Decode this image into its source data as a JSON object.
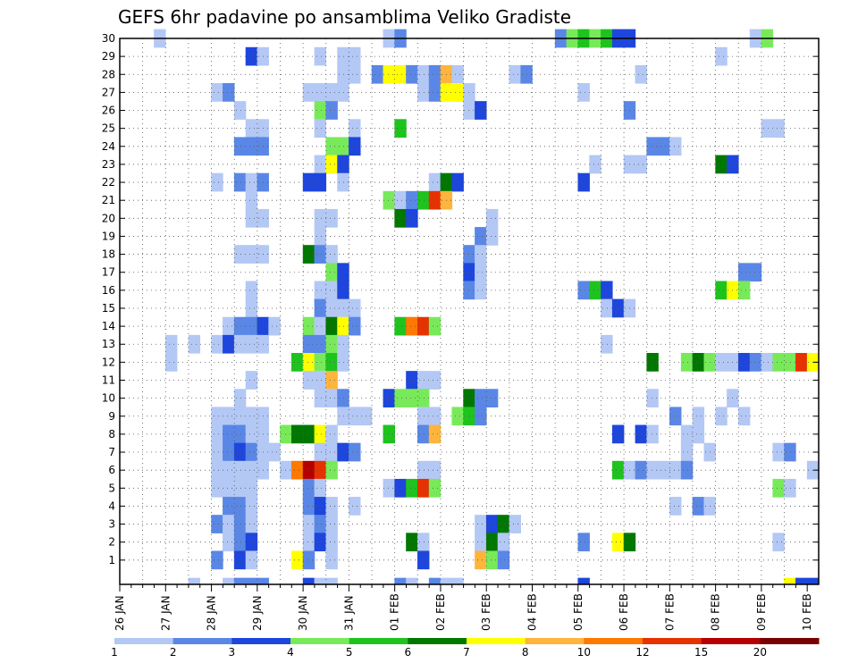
{
  "chart_data": {
    "type": "heatmap",
    "title": "GEFS 6hr padavine po ansamblima Veliko Gradiste",
    "xlabel": "",
    "ylabel": "",
    "grid": true,
    "x_tick_labels": [
      "26 JAN",
      "27 JAN",
      "28 JAN",
      "29 JAN",
      "30 JAN",
      "31 JAN",
      "01 FEB",
      "02 FEB",
      "03 FEB",
      "04 FEB",
      "05 FEB",
      "06 FEB",
      "07 FEB",
      "08 FEB",
      "09 FEB",
      "10 FEB"
    ],
    "y_tick_labels": [
      "1",
      "2",
      "3",
      "4",
      "5",
      "6",
      "7",
      "8",
      "9",
      "10",
      "11",
      "12",
      "13",
      "14",
      "15",
      "16",
      "17",
      "18",
      "19",
      "20",
      "21",
      "22",
      "23",
      "24",
      "25",
      "26",
      "27",
      "28",
      "29",
      "30"
    ],
    "x_range_steps": [
      0,
      60
    ],
    "steps_per_day": 4,
    "members_range": [
      0,
      30
    ],
    "colorbar": {
      "labels": [
        "1",
        "2",
        "3",
        "4",
        "5",
        "6",
        "7",
        "8",
        "10",
        "12",
        "15",
        "20"
      ],
      "colors": [
        "#b4c8f5",
        "#5a87e6",
        "#1e46dc",
        "#78ea5a",
        "#1ec31e",
        "#007800",
        "#ffff00",
        "#ffb43c",
        "#ff7800",
        "#e63200",
        "#b40000",
        "#780000"
      ]
    },
    "cells": [
      [
        3,
        30,
        1
      ],
      [
        23,
        30,
        1
      ],
      [
        24,
        30,
        2
      ],
      [
        38,
        30,
        2
      ],
      [
        39,
        30,
        4
      ],
      [
        40,
        30,
        5
      ],
      [
        41,
        30,
        4
      ],
      [
        42,
        30,
        5
      ],
      [
        43,
        30,
        3
      ],
      [
        44,
        30,
        3
      ],
      [
        55,
        30,
        1
      ],
      [
        56,
        30,
        4
      ],
      [
        11,
        29,
        3
      ],
      [
        12,
        29,
        1
      ],
      [
        17,
        29,
        1
      ],
      [
        19,
        29,
        1
      ],
      [
        20,
        29,
        1
      ],
      [
        52,
        29,
        1
      ],
      [
        19,
        28,
        1
      ],
      [
        20,
        28,
        1
      ],
      [
        22,
        28,
        2
      ],
      [
        23,
        28,
        7
      ],
      [
        24,
        28,
        7
      ],
      [
        25,
        28,
        2
      ],
      [
        26,
        28,
        1
      ],
      [
        27,
        28,
        2
      ],
      [
        28,
        28,
        8
      ],
      [
        29,
        28,
        1
      ],
      [
        34,
        28,
        1
      ],
      [
        35,
        28,
        2
      ],
      [
        45,
        28,
        1
      ],
      [
        8,
        27,
        1
      ],
      [
        9,
        27,
        2
      ],
      [
        16,
        27,
        1
      ],
      [
        17,
        27,
        1
      ],
      [
        18,
        27,
        1
      ],
      [
        19,
        27,
        1
      ],
      [
        26,
        27,
        1
      ],
      [
        27,
        27,
        2
      ],
      [
        28,
        27,
        7
      ],
      [
        29,
        27,
        7
      ],
      [
        30,
        27,
        1
      ],
      [
        40,
        27,
        1
      ],
      [
        10,
        26,
        1
      ],
      [
        17,
        26,
        4
      ],
      [
        18,
        26,
        2
      ],
      [
        30,
        26,
        1
      ],
      [
        31,
        26,
        3
      ],
      [
        44,
        26,
        2
      ],
      [
        11,
        25,
        1
      ],
      [
        12,
        25,
        1
      ],
      [
        17,
        25,
        1
      ],
      [
        20,
        25,
        1
      ],
      [
        24,
        25,
        5
      ],
      [
        56,
        25,
        1
      ],
      [
        57,
        25,
        1
      ],
      [
        10,
        24,
        2
      ],
      [
        11,
        24,
        2
      ],
      [
        12,
        24,
        2
      ],
      [
        18,
        24,
        4
      ],
      [
        19,
        24,
        4
      ],
      [
        20,
        24,
        3
      ],
      [
        46,
        24,
        2
      ],
      [
        47,
        24,
        2
      ],
      [
        48,
        24,
        1
      ],
      [
        17,
        23,
        1
      ],
      [
        18,
        23,
        7
      ],
      [
        19,
        23,
        3
      ],
      [
        41,
        23,
        1
      ],
      [
        44,
        23,
        1
      ],
      [
        45,
        23,
        1
      ],
      [
        52,
        23,
        6
      ],
      [
        53,
        23,
        3
      ],
      [
        8,
        22,
        1
      ],
      [
        10,
        22,
        2
      ],
      [
        11,
        22,
        1
      ],
      [
        12,
        22,
        2
      ],
      [
        16,
        22,
        3
      ],
      [
        17,
        22,
        3
      ],
      [
        19,
        22,
        1
      ],
      [
        27,
        22,
        1
      ],
      [
        28,
        22,
        6
      ],
      [
        29,
        22,
        3
      ],
      [
        40,
        22,
        3
      ],
      [
        11,
        21,
        1
      ],
      [
        23,
        21,
        4
      ],
      [
        24,
        21,
        1
      ],
      [
        25,
        21,
        2
      ],
      [
        26,
        21,
        5
      ],
      [
        27,
        21,
        10
      ],
      [
        28,
        21,
        8
      ],
      [
        11,
        20,
        1
      ],
      [
        12,
        20,
        1
      ],
      [
        17,
        20,
        1
      ],
      [
        18,
        20,
        1
      ],
      [
        24,
        20,
        6
      ],
      [
        25,
        20,
        3
      ],
      [
        32,
        20,
        1
      ],
      [
        17,
        19,
        1
      ],
      [
        31,
        19,
        2
      ],
      [
        32,
        19,
        1
      ],
      [
        10,
        18,
        1
      ],
      [
        11,
        18,
        1
      ],
      [
        12,
        18,
        1
      ],
      [
        16,
        18,
        6
      ],
      [
        17,
        18,
        2
      ],
      [
        18,
        18,
        1
      ],
      [
        30,
        18,
        2
      ],
      [
        31,
        18,
        1
      ],
      [
        18,
        17,
        4
      ],
      [
        19,
        17,
        3
      ],
      [
        30,
        17,
        3
      ],
      [
        31,
        17,
        1
      ],
      [
        54,
        17,
        2
      ],
      [
        55,
        17,
        2
      ],
      [
        11,
        16,
        1
      ],
      [
        17,
        16,
        1
      ],
      [
        18,
        16,
        1
      ],
      [
        19,
        16,
        3
      ],
      [
        30,
        16,
        2
      ],
      [
        31,
        16,
        1
      ],
      [
        40,
        16,
        2
      ],
      [
        41,
        16,
        5
      ],
      [
        42,
        16,
        3
      ],
      [
        52,
        16,
        5
      ],
      [
        53,
        16,
        7
      ],
      [
        54,
        16,
        4
      ],
      [
        11,
        15,
        1
      ],
      [
        17,
        15,
        2
      ],
      [
        18,
        15,
        1
      ],
      [
        19,
        15,
        1
      ],
      [
        20,
        15,
        1
      ],
      [
        42,
        15,
        1
      ],
      [
        43,
        15,
        3
      ],
      [
        44,
        15,
        1
      ],
      [
        9,
        14,
        1
      ],
      [
        10,
        14,
        2
      ],
      [
        11,
        14,
        2
      ],
      [
        12,
        14,
        3
      ],
      [
        13,
        14,
        1
      ],
      [
        16,
        14,
        4
      ],
      [
        17,
        14,
        1
      ],
      [
        18,
        14,
        6
      ],
      [
        19,
        14,
        7
      ],
      [
        20,
        14,
        2
      ],
      [
        24,
        14,
        5
      ],
      [
        25,
        14,
        9
      ],
      [
        26,
        14,
        10
      ],
      [
        27,
        14,
        4
      ],
      [
        4,
        13,
        1
      ],
      [
        6,
        13,
        1
      ],
      [
        8,
        13,
        1
      ],
      [
        9,
        13,
        3
      ],
      [
        10,
        13,
        1
      ],
      [
        11,
        13,
        1
      ],
      [
        12,
        13,
        1
      ],
      [
        16,
        13,
        2
      ],
      [
        17,
        13,
        2
      ],
      [
        18,
        13,
        4
      ],
      [
        19,
        13,
        1
      ],
      [
        42,
        13,
        1
      ],
      [
        4,
        12,
        1
      ],
      [
        15,
        12,
        5
      ],
      [
        16,
        12,
        7
      ],
      [
        17,
        12,
        4
      ],
      [
        18,
        12,
        5
      ],
      [
        19,
        12,
        1
      ],
      [
        46,
        12,
        6
      ],
      [
        49,
        12,
        4
      ],
      [
        50,
        12,
        6
      ],
      [
        51,
        12,
        4
      ],
      [
        52,
        12,
        1
      ],
      [
        53,
        12,
        1
      ],
      [
        54,
        12,
        3
      ],
      [
        55,
        12,
        2
      ],
      [
        56,
        12,
        1
      ],
      [
        57,
        12,
        4
      ],
      [
        58,
        12,
        4
      ],
      [
        59,
        12,
        10
      ],
      [
        60,
        12,
        7
      ],
      [
        11,
        11,
        1
      ],
      [
        16,
        11,
        1
      ],
      [
        17,
        11,
        1
      ],
      [
        18,
        11,
        8
      ],
      [
        25,
        11,
        3
      ],
      [
        26,
        11,
        1
      ],
      [
        27,
        11,
        1
      ],
      [
        10,
        10,
        1
      ],
      [
        17,
        10,
        1
      ],
      [
        18,
        10,
        1
      ],
      [
        19,
        10,
        2
      ],
      [
        23,
        10,
        3
      ],
      [
        24,
        10,
        4
      ],
      [
        25,
        10,
        4
      ],
      [
        26,
        10,
        4
      ],
      [
        30,
        10,
        6
      ],
      [
        31,
        10,
        2
      ],
      [
        32,
        10,
        2
      ],
      [
        46,
        10,
        1
      ],
      [
        53,
        10,
        1
      ],
      [
        8,
        9,
        1
      ],
      [
        9,
        9,
        1
      ],
      [
        10,
        9,
        1
      ],
      [
        11,
        9,
        1
      ],
      [
        12,
        9,
        1
      ],
      [
        19,
        9,
        1
      ],
      [
        20,
        9,
        1
      ],
      [
        21,
        9,
        1
      ],
      [
        26,
        9,
        1
      ],
      [
        27,
        9,
        1
      ],
      [
        29,
        9,
        4
      ],
      [
        30,
        9,
        5
      ],
      [
        31,
        9,
        2
      ],
      [
        48,
        9,
        2
      ],
      [
        50,
        9,
        1
      ],
      [
        52,
        9,
        1
      ],
      [
        54,
        9,
        1
      ],
      [
        8,
        8,
        1
      ],
      [
        9,
        8,
        2
      ],
      [
        10,
        8,
        2
      ],
      [
        11,
        8,
        1
      ],
      [
        12,
        8,
        1
      ],
      [
        14,
        8,
        4
      ],
      [
        15,
        8,
        6
      ],
      [
        16,
        8,
        6
      ],
      [
        17,
        8,
        7
      ],
      [
        18,
        8,
        1
      ],
      [
        23,
        8,
        5
      ],
      [
        26,
        8,
        2
      ],
      [
        27,
        8,
        8
      ],
      [
        43,
        8,
        3
      ],
      [
        45,
        8,
        3
      ],
      [
        46,
        8,
        1
      ],
      [
        49,
        8,
        1
      ],
      [
        50,
        8,
        1
      ],
      [
        8,
        7,
        1
      ],
      [
        9,
        7,
        2
      ],
      [
        10,
        7,
        3
      ],
      [
        11,
        7,
        2
      ],
      [
        12,
        7,
        1
      ],
      [
        13,
        7,
        1
      ],
      [
        17,
        7,
        1
      ],
      [
        18,
        7,
        1
      ],
      [
        19,
        7,
        3
      ],
      [
        20,
        7,
        2
      ],
      [
        49,
        7,
        1
      ],
      [
        51,
        7,
        1
      ],
      [
        57,
        7,
        1
      ],
      [
        58,
        7,
        2
      ],
      [
        8,
        6,
        1
      ],
      [
        9,
        6,
        1
      ],
      [
        10,
        6,
        1
      ],
      [
        11,
        6,
        1
      ],
      [
        12,
        6,
        1
      ],
      [
        14,
        6,
        1
      ],
      [
        15,
        6,
        9
      ],
      [
        16,
        6,
        11
      ],
      [
        17,
        6,
        10
      ],
      [
        18,
        6,
        4
      ],
      [
        26,
        6,
        1
      ],
      [
        27,
        6,
        1
      ],
      [
        43,
        6,
        5
      ],
      [
        44,
        6,
        1
      ],
      [
        45,
        6,
        2
      ],
      [
        46,
        6,
        1
      ],
      [
        47,
        6,
        1
      ],
      [
        48,
        6,
        1
      ],
      [
        49,
        6,
        2
      ],
      [
        60,
        6,
        1
      ],
      [
        8,
        5,
        1
      ],
      [
        9,
        5,
        1
      ],
      [
        10,
        5,
        1
      ],
      [
        11,
        5,
        1
      ],
      [
        16,
        5,
        2
      ],
      [
        17,
        5,
        1
      ],
      [
        23,
        5,
        1
      ],
      [
        24,
        5,
        3
      ],
      [
        25,
        5,
        5
      ],
      [
        26,
        5,
        10
      ],
      [
        27,
        5,
        4
      ],
      [
        57,
        5,
        4
      ],
      [
        58,
        5,
        1
      ],
      [
        9,
        4,
        2
      ],
      [
        10,
        4,
        2
      ],
      [
        11,
        4,
        1
      ],
      [
        16,
        4,
        2
      ],
      [
        17,
        4,
        3
      ],
      [
        18,
        4,
        1
      ],
      [
        20,
        4,
        1
      ],
      [
        48,
        4,
        1
      ],
      [
        50,
        4,
        2
      ],
      [
        51,
        4,
        1
      ],
      [
        8,
        3,
        2
      ],
      [
        9,
        3,
        1
      ],
      [
        10,
        3,
        2
      ],
      [
        11,
        3,
        1
      ],
      [
        16,
        3,
        1
      ],
      [
        17,
        3,
        2
      ],
      [
        18,
        3,
        1
      ],
      [
        31,
        3,
        1
      ],
      [
        32,
        3,
        3
      ],
      [
        33,
        3,
        6
      ],
      [
        34,
        3,
        1
      ],
      [
        9,
        2,
        1
      ],
      [
        10,
        2,
        2
      ],
      [
        11,
        2,
        3
      ],
      [
        16,
        2,
        1
      ],
      [
        17,
        2,
        3
      ],
      [
        18,
        2,
        1
      ],
      [
        25,
        2,
        6
      ],
      [
        26,
        2,
        1
      ],
      [
        31,
        2,
        1
      ],
      [
        32,
        2,
        6
      ],
      [
        33,
        2,
        1
      ],
      [
        40,
        2,
        2
      ],
      [
        43,
        2,
        7
      ],
      [
        44,
        2,
        6
      ],
      [
        57,
        2,
        1
      ],
      [
        8,
        1,
        2
      ],
      [
        10,
        1,
        3
      ],
      [
        11,
        1,
        1
      ],
      [
        15,
        1,
        7
      ],
      [
        16,
        1,
        2
      ],
      [
        18,
        1,
        1
      ],
      [
        26,
        1,
        3
      ],
      [
        31,
        1,
        8
      ],
      [
        32,
        1,
        4
      ],
      [
        33,
        1,
        2
      ],
      [
        6,
        0,
        1
      ],
      [
        9,
        0,
        1
      ],
      [
        10,
        0,
        2
      ],
      [
        11,
        0,
        2
      ],
      [
        12,
        0,
        2
      ],
      [
        16,
        0,
        3
      ],
      [
        17,
        0,
        1
      ],
      [
        18,
        0,
        1
      ],
      [
        24,
        0,
        2
      ],
      [
        25,
        0,
        1
      ],
      [
        27,
        0,
        2
      ],
      [
        28,
        0,
        1
      ],
      [
        29,
        0,
        1
      ],
      [
        40,
        0,
        3
      ],
      [
        58,
        0,
        7
      ],
      [
        59,
        0,
        3
      ],
      [
        60,
        0,
        3
      ]
    ]
  }
}
